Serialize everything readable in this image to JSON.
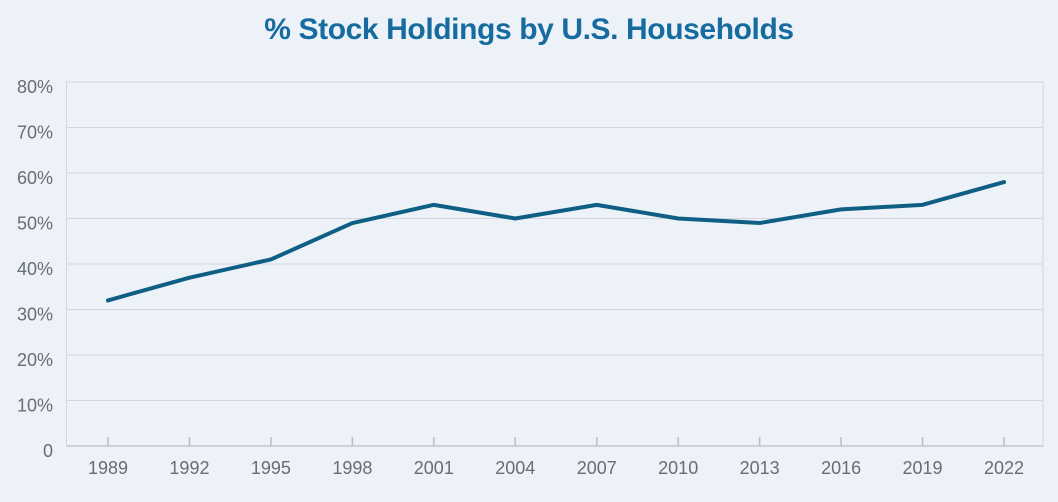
{
  "chart_data": {
    "type": "line",
    "title": "% Stock Holdings by U.S. Households",
    "categories": [
      "1989",
      "1992",
      "1995",
      "1998",
      "2001",
      "2004",
      "2007",
      "2010",
      "2013",
      "2016",
      "2019",
      "2022"
    ],
    "values": [
      32,
      37,
      41,
      49,
      53,
      50,
      53,
      50,
      49,
      52,
      53,
      58
    ],
    "xlabel": "",
    "ylabel": "",
    "ylim": [
      0,
      80
    ],
    "y_tick_step": 10,
    "y_tick_labels": [
      "0",
      "10%",
      "20%",
      "30%",
      "40%",
      "50%",
      "60%",
      "70%",
      "80%"
    ],
    "grid": "horizontal",
    "legend": "none",
    "colors": {
      "line": "#0f5f85",
      "title": "#166b9f",
      "axis_text": "#686d75",
      "gridline": "#d3d6dc",
      "axis_line": "#c3c7cd",
      "tick": "#b9bdc4",
      "background": "#edf2f9"
    }
  }
}
